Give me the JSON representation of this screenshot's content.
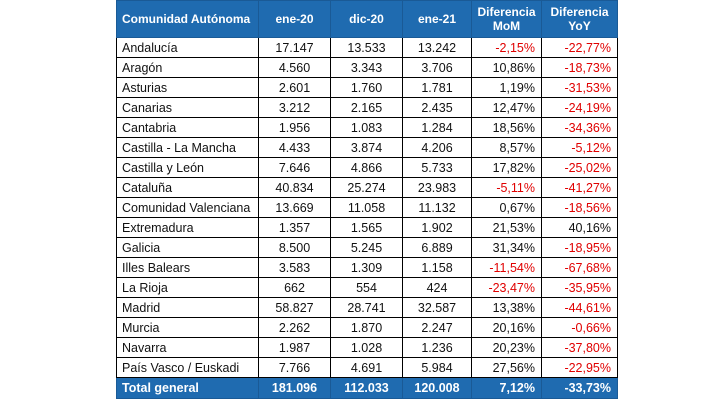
{
  "header": {
    "region": "Comunidad Autónoma",
    "c1": "ene-20",
    "c2": "dic-20",
    "c3": "ene-21",
    "c4": "Diferencia MoM",
    "c5": "Diferencia YoY"
  },
  "rows": [
    {
      "name": "Andalucía",
      "v1": "17.147",
      "v2": "13.533",
      "v3": "13.242",
      "mom": "-2,15%",
      "yoy": "-22,77%"
    },
    {
      "name": "Aragón",
      "v1": "4.560",
      "v2": "3.343",
      "v3": "3.706",
      "mom": "10,86%",
      "yoy": "-18,73%"
    },
    {
      "name": "Asturias",
      "v1": "2.601",
      "v2": "1.760",
      "v3": "1.781",
      "mom": "1,19%",
      "yoy": "-31,53%"
    },
    {
      "name": "Canarias",
      "v1": "3.212",
      "v2": "2.165",
      "v3": "2.435",
      "mom": "12,47%",
      "yoy": "-24,19%"
    },
    {
      "name": "Cantabria",
      "v1": "1.956",
      "v2": "1.083",
      "v3": "1.284",
      "mom": "18,56%",
      "yoy": "-34,36%"
    },
    {
      "name": "Castilla - La Mancha",
      "v1": "4.433",
      "v2": "3.874",
      "v3": "4.206",
      "mom": "8,57%",
      "yoy": "-5,12%"
    },
    {
      "name": "Castilla y León",
      "v1": "7.646",
      "v2": "4.866",
      "v3": "5.733",
      "mom": "17,82%",
      "yoy": "-25,02%"
    },
    {
      "name": "Cataluña",
      "v1": "40.834",
      "v2": "25.274",
      "v3": "23.983",
      "mom": "-5,11%",
      "yoy": "-41,27%"
    },
    {
      "name": "Comunidad Valenciana",
      "v1": "13.669",
      "v2": "11.058",
      "v3": "11.132",
      "mom": "0,67%",
      "yoy": "-18,56%"
    },
    {
      "name": "Extremadura",
      "v1": "1.357",
      "v2": "1.565",
      "v3": "1.902",
      "mom": "21,53%",
      "yoy": "40,16%"
    },
    {
      "name": "Galicia",
      "v1": "8.500",
      "v2": "5.245",
      "v3": "6.889",
      "mom": "31,34%",
      "yoy": "-18,95%"
    },
    {
      "name": "Illes Balears",
      "v1": "3.583",
      "v2": "1.309",
      "v3": "1.158",
      "mom": "-11,54%",
      "yoy": "-67,68%"
    },
    {
      "name": "La Rioja",
      "v1": "662",
      "v2": "554",
      "v3": "424",
      "mom": "-23,47%",
      "yoy": "-35,95%"
    },
    {
      "name": "Madrid",
      "v1": "58.827",
      "v2": "28.741",
      "v3": "32.587",
      "mom": "13,38%",
      "yoy": "-44,61%"
    },
    {
      "name": "Murcia",
      "v1": "2.262",
      "v2": "1.870",
      "v3": "2.247",
      "mom": "20,16%",
      "yoy": "-0,66%"
    },
    {
      "name": "Navarra",
      "v1": "1.987",
      "v2": "1.028",
      "v3": "1.236",
      "mom": "20,23%",
      "yoy": "-37,80%"
    },
    {
      "name": "País Vasco / Euskadi",
      "v1": "7.766",
      "v2": "4.691",
      "v3": "5.984",
      "mom": "27,56%",
      "yoy": "-22,95%"
    }
  ],
  "total": {
    "name": "Total general",
    "v1": "181.096",
    "v2": "112.033",
    "v3": "120.008",
    "mom": "7,12%",
    "yoy": "-33,73%"
  },
  "colors": {
    "header_bg": "#1f6bb0",
    "negative": "#e00000"
  }
}
